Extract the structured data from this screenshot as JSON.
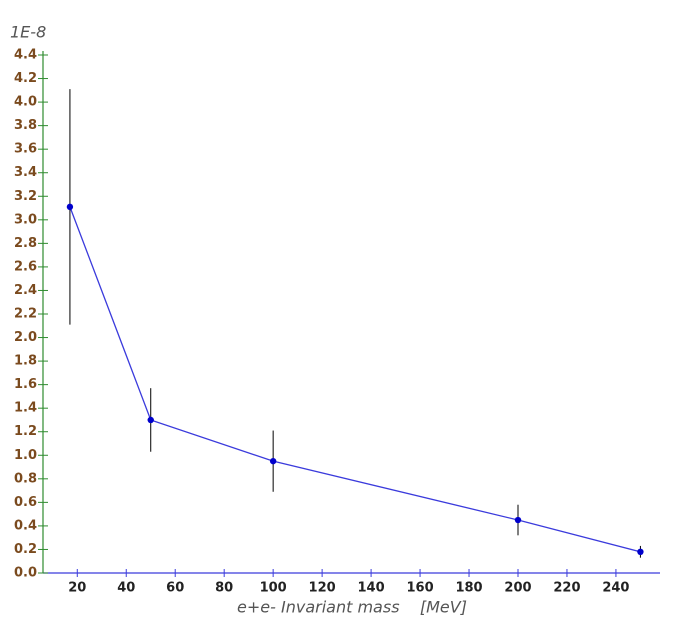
{
  "chart_data": {
    "type": "line",
    "y_multiplier": "1E-8",
    "x_label": "e+e- Invariant mass    [MeV]",
    "x": [
      17,
      50,
      100,
      200,
      250
    ],
    "values": [
      3.11,
      1.3,
      0.95,
      0.45,
      0.18
    ],
    "errors": [
      1.0,
      0.27,
      0.26,
      0.13,
      0.05
    ],
    "color": "#3b3bdc",
    "marker_color": "#0000cc",
    "error_color": "#000000",
    "y_axis_color": "#2e8b2e",
    "x_axis_color": "#3b3bdc",
    "xlim": [
      6,
      258
    ],
    "ylim": [
      0,
      4.4
    ],
    "xticks": [
      20,
      40,
      60,
      80,
      100,
      120,
      140,
      160,
      180,
      200,
      220,
      240
    ],
    "yticks": [
      {
        "value": 0,
        "label": "0.0"
      },
      0.2,
      0.4,
      0.6,
      0.8,
      {
        "value": 1,
        "label": "1.0"
      },
      1.2,
      1.4,
      1.6,
      1.8,
      {
        "value": 2,
        "label": "2.0"
      },
      2.2,
      2.4,
      2.6,
      2.8,
      {
        "value": 3,
        "label": "3.0"
      },
      3.2,
      3.4,
      3.6,
      3.8,
      {
        "value": 4,
        "label": "4.0"
      },
      4.2,
      4.4
    ]
  }
}
